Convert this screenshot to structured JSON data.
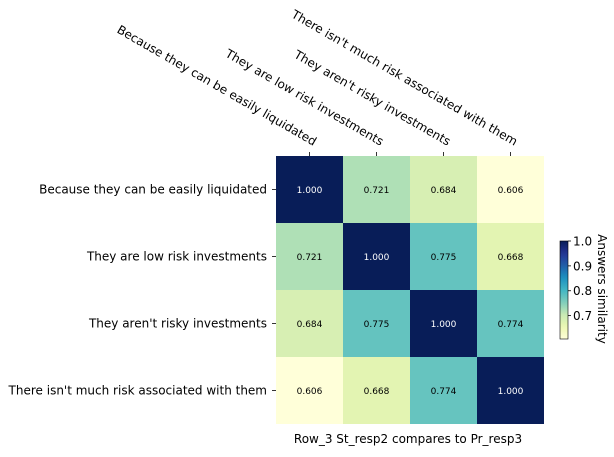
{
  "chart_data": {
    "type": "heatmap",
    "title": "",
    "xlabel": "Row_3 St_resp2 compares to Pr_resp3",
    "ylabel": "",
    "x_categories": [
      "Because they can be easily liquidated",
      "They are low risk investments",
      "They aren't risky investments",
      "There isn't much risk associated with them"
    ],
    "y_categories": [
      "Because they can be easily liquidated",
      "They are low risk investments",
      "They aren't risky investments",
      "There isn't much risk associated with them"
    ],
    "values": [
      [
        1.0,
        0.721,
        0.684,
        0.606
      ],
      [
        0.721,
        1.0,
        0.775,
        0.668
      ],
      [
        0.684,
        0.775,
        1.0,
        0.774
      ],
      [
        0.606,
        0.668,
        0.774,
        1.0
      ]
    ],
    "value_format": "0.000",
    "x_tick_position": "top",
    "x_tick_rotation": "-30deg",
    "colormap": "YlGnBu",
    "colorbar": {
      "label": "Answers similarity",
      "range": [
        0.606,
        1.0
      ],
      "ticks": [
        0.7,
        0.8,
        0.9,
        1.0
      ],
      "tick_labels": [
        "0.7",
        "0.8",
        "0.9",
        "1.0"
      ]
    },
    "grid": false
  }
}
